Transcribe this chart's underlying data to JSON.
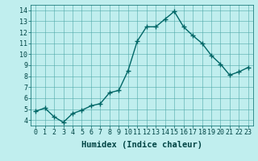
{
  "x": [
    0,
    1,
    2,
    3,
    4,
    5,
    6,
    7,
    8,
    9,
    10,
    11,
    12,
    13,
    14,
    15,
    16,
    17,
    18,
    19,
    20,
    21,
    22,
    23
  ],
  "y": [
    4.8,
    5.1,
    4.3,
    3.8,
    4.6,
    4.9,
    5.3,
    5.5,
    6.5,
    6.7,
    8.5,
    11.2,
    12.5,
    12.5,
    13.2,
    13.9,
    12.5,
    11.7,
    11.0,
    9.9,
    9.1,
    8.1,
    8.4,
    8.8
  ],
  "line_color": "#006666",
  "marker": "+",
  "marker_size": 4,
  "marker_lw": 1.0,
  "bg_color": "#c0eeee",
  "grid_color": "#50a8a8",
  "xlabel": "Humidex (Indice chaleur)",
  "xlim": [
    -0.5,
    23.5
  ],
  "ylim": [
    3.5,
    14.5
  ],
  "yticks": [
    4,
    5,
    6,
    7,
    8,
    9,
    10,
    11,
    12,
    13,
    14
  ],
  "xticks": [
    0,
    1,
    2,
    3,
    4,
    5,
    6,
    7,
    8,
    9,
    10,
    11,
    12,
    13,
    14,
    15,
    16,
    17,
    18,
    19,
    20,
    21,
    22,
    23
  ],
  "tick_fontsize": 6,
  "label_fontsize": 7.5,
  "linewidth": 1.0
}
